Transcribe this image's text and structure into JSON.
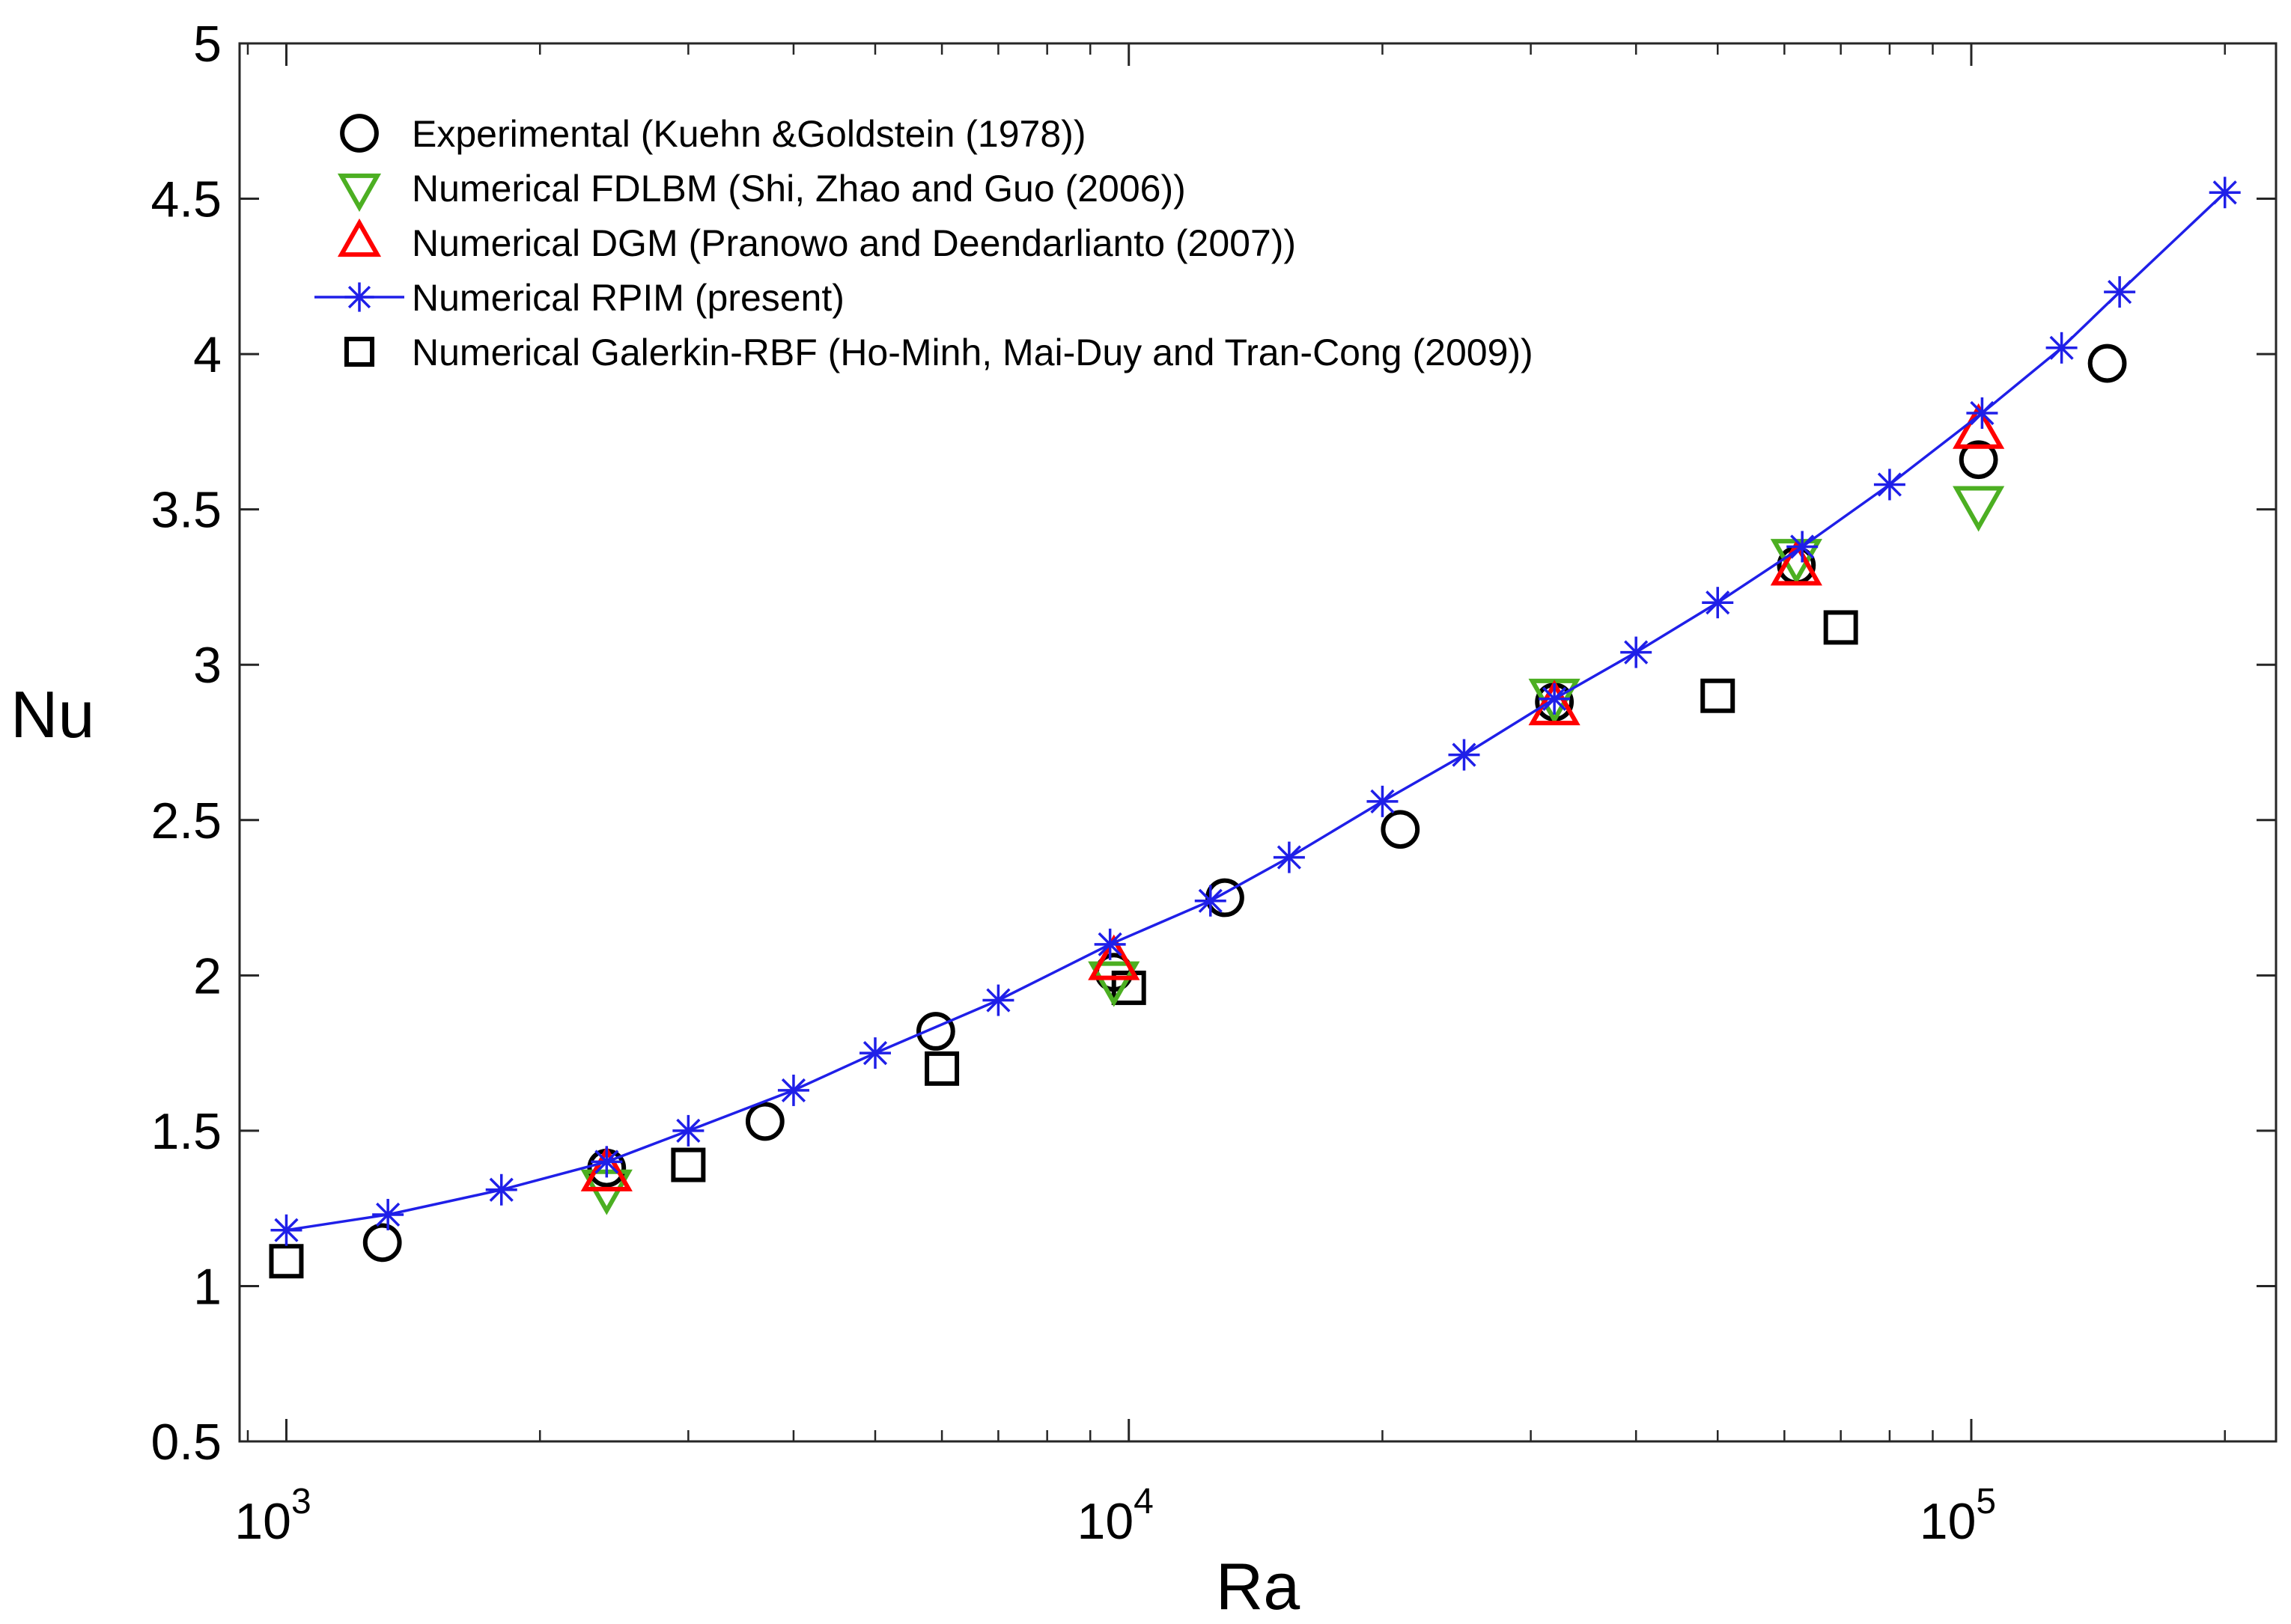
{
  "chart_data": {
    "type": "scatter",
    "title": "",
    "xlabel": "Ra",
    "ylabel": "Nu",
    "xscale": "log",
    "xlim": [
      880,
      230000
    ],
    "ylim": [
      0.5,
      5
    ],
    "grid": false,
    "legend_position": "top-left",
    "x_ticks": [
      {
        "value": 1000,
        "base": "10",
        "exp": "3"
      },
      {
        "value": 10000,
        "base": "10",
        "exp": "4"
      },
      {
        "value": 100000,
        "base": "10",
        "exp": "5"
      }
    ],
    "y_ticks": [
      {
        "value": 0.5,
        "label": "0.5"
      },
      {
        "value": 1,
        "label": "1"
      },
      {
        "value": 1.5,
        "label": "1.5"
      },
      {
        "value": 2,
        "label": "2"
      },
      {
        "value": 2.5,
        "label": "2.5"
      },
      {
        "value": 3,
        "label": "3"
      },
      {
        "value": 3.5,
        "label": "3.5"
      },
      {
        "value": 4,
        "label": "4"
      },
      {
        "value": 4.5,
        "label": "4.5"
      },
      {
        "value": 5,
        "label": "5"
      }
    ],
    "series": [
      {
        "name": "Experimental (Kuehn &Goldstein (1978))",
        "marker": "circle",
        "color": "#000000",
        "line": false,
        "points": [
          [
            1300,
            1.14
          ],
          [
            2400,
            1.38
          ],
          [
            3700,
            1.53
          ],
          [
            5900,
            1.82
          ],
          [
            9600,
            2.01
          ],
          [
            13000,
            2.25
          ],
          [
            21000,
            2.47
          ],
          [
            32000,
            2.88
          ],
          [
            62000,
            3.32
          ],
          [
            102000,
            3.66
          ],
          [
            145000,
            3.97
          ]
        ]
      },
      {
        "name": "Numerical FDLBM (Shi, Zhao and Guo (2006))",
        "marker": "triangle-down",
        "color": "#4caf22",
        "line": false,
        "points": [
          [
            2400,
            1.32
          ],
          [
            9600,
            1.99
          ],
          [
            32000,
            2.9
          ],
          [
            62000,
            3.35
          ],
          [
            102000,
            3.52
          ]
        ]
      },
      {
        "name": "Numerical DGM (Pranowo and Deendarlianto (2007))",
        "marker": "triangle-up",
        "color": "#ff0000",
        "line": false,
        "points": [
          [
            2400,
            1.36
          ],
          [
            9600,
            2.04
          ],
          [
            32000,
            2.86
          ],
          [
            62000,
            3.31
          ],
          [
            102000,
            3.75
          ]
        ]
      },
      {
        "name": "Numerical RPIM (present)",
        "marker": "asterisk",
        "color": "#1f1fe8",
        "line": true,
        "points": [
          [
            1000,
            1.18
          ],
          [
            1320,
            1.23
          ],
          [
            1800,
            1.31
          ],
          [
            2400,
            1.4
          ],
          [
            3000,
            1.5
          ],
          [
            4000,
            1.63
          ],
          [
            5000,
            1.75
          ],
          [
            7000,
            1.92
          ],
          [
            9500,
            2.1
          ],
          [
            12500,
            2.24
          ],
          [
            15500,
            2.38
          ],
          [
            20000,
            2.56
          ],
          [
            25000,
            2.71
          ],
          [
            32000,
            2.89
          ],
          [
            40000,
            3.04
          ],
          [
            50000,
            3.2
          ],
          [
            63000,
            3.38
          ],
          [
            80000,
            3.58
          ],
          [
            103000,
            3.81
          ],
          [
            128000,
            4.02
          ],
          [
            150000,
            4.2
          ],
          [
            200000,
            4.52
          ]
        ]
      },
      {
        "name": "Numerical Galerkin-RBF (Ho-Minh, Mai-Duy and Tran-Cong (2009))",
        "marker": "square",
        "color": "#000000",
        "line": false,
        "points": [
          [
            1000,
            1.08
          ],
          [
            3000,
            1.39
          ],
          [
            6000,
            1.7
          ],
          [
            10000,
            1.96
          ],
          [
            50000,
            2.9
          ],
          [
            70000,
            3.12
          ]
        ]
      }
    ]
  }
}
